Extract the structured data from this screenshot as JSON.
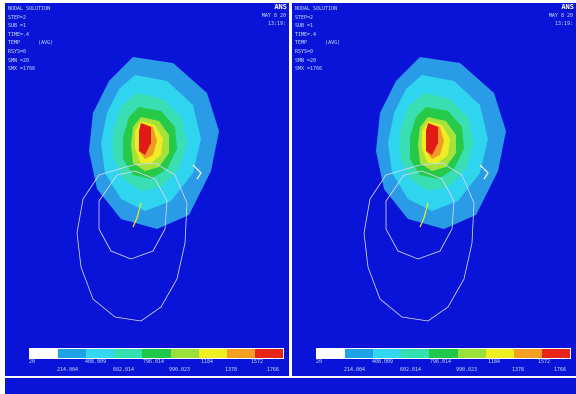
{
  "colors": {
    "background": "#0a14d8",
    "legend": [
      "#ffffff",
      "#1fa3e8",
      "#33d8f0",
      "#34e0b0",
      "#1ec84a",
      "#9be03a",
      "#f0f020",
      "#f5a023",
      "#e82418"
    ],
    "contour": [
      "#2a9be6",
      "#2fd4ef",
      "#39dfb2",
      "#27c948",
      "#a6e23a",
      "#f0ec24",
      "#f29a26",
      "#e01a14"
    ]
  },
  "panels": [
    {
      "logo": "ANS",
      "title": "NODAL SOLUTION",
      "lines": [
        "STEP=2",
        "SUB =1",
        "TIME=.4",
        "TEMP      (AVG)",
        "RSYS=0",
        "SMN =20",
        "SMX =1766"
      ],
      "date": "MAY  8 20",
      "time": "13:19:",
      "legend_top": [
        "20",
        "408.009",
        "796.014",
        "1184",
        "1572"
      ],
      "legend_bottom": [
        "214.004",
        "602.014",
        "990.023",
        "1378",
        "1766"
      ]
    },
    {
      "logo": "ANS",
      "title": "NODAL SOLUTION",
      "lines": [
        "STEP=2",
        "SUB =1",
        "TIME=.4",
        "TEMP      (AVG)",
        "RSYS=0",
        "SMN =20",
        "SMX =1766"
      ],
      "date": "MAY  8 20",
      "time": "13:19:",
      "legend_top": [
        "20",
        "408.009",
        "796.014",
        "1184",
        "1572"
      ],
      "legend_bottom": [
        "214.004",
        "602.014",
        "990.023",
        "1378",
        "1766"
      ]
    }
  ]
}
